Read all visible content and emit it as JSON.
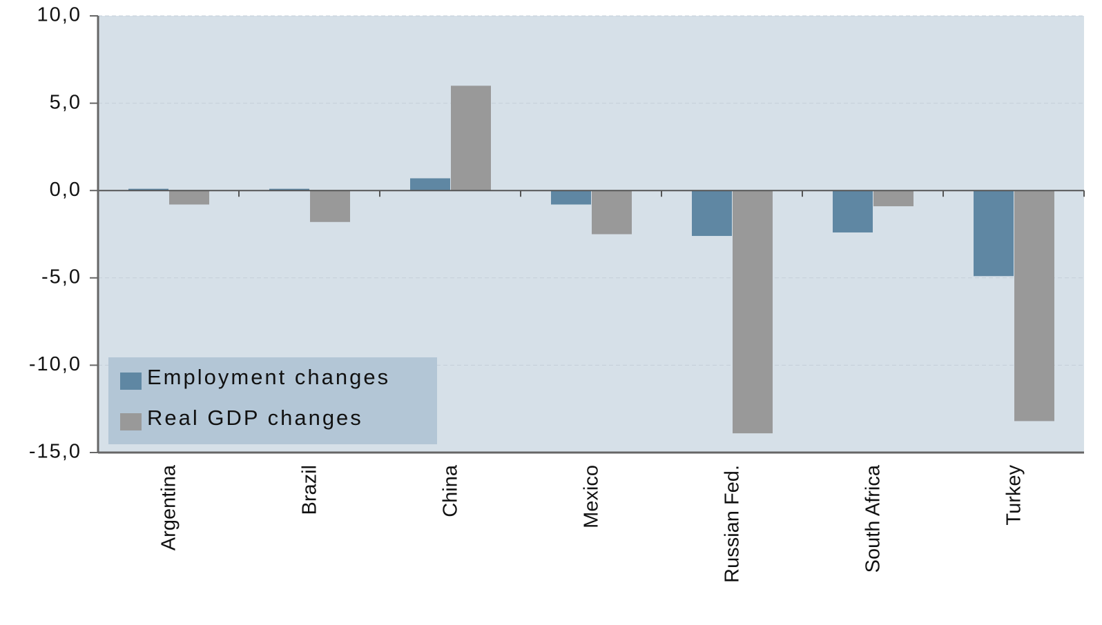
{
  "chart_data": {
    "type": "bar",
    "categories": [
      "Argentina",
      "Brazil",
      "China",
      "Mexico",
      "Russian Fed.",
      "South Africa",
      "Turkey"
    ],
    "series": [
      {
        "name": "Employment changes",
        "color": "#5f87a3",
        "values": [
          0.1,
          0.1,
          0.7,
          -0.8,
          -2.6,
          -2.4,
          -4.9
        ]
      },
      {
        "name": "Real GDP changes",
        "color": "#999999",
        "values": [
          -0.8,
          -1.8,
          6.0,
          -2.5,
          -13.9,
          -0.9,
          -13.2
        ]
      }
    ],
    "ylim": [
      -15,
      10
    ],
    "yticks": [
      {
        "value": 10,
        "label": "10,0"
      },
      {
        "value": 5,
        "label": "5,0"
      },
      {
        "value": 0,
        "label": "0,0"
      },
      {
        "value": -5,
        "label": "-5,0"
      },
      {
        "value": -10,
        "label": "-10,0"
      },
      {
        "value": -15,
        "label": "-15,0"
      }
    ],
    "grid": true,
    "legend": "lower left"
  }
}
